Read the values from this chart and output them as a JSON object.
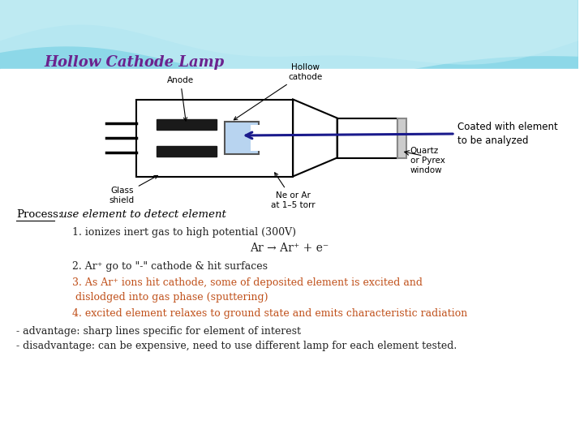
{
  "title": "Hollow Cathode Lamp",
  "title_color": "#6B238E",
  "coated_text": "Coated with element\nto be analyzed",
  "process_label": "Process:",
  "process_desc": " use element to detect element",
  "step1": "1. ionizes inert gas to high potential (300V)",
  "step1b": "Ar → Ar⁺ + e⁻",
  "step2": "2. Ar⁺ go to \"-\" cathode & hit surfaces",
  "step3": "3. As Ar⁺ ions hit cathode, some of deposited element is excited and",
  "step3b": " dislodged into gas phase (sputtering)",
  "step4": "4. excited element relaxes to ground state and emits characteristic radiation",
  "adv": "- advantage: sharp lines specific for element of interest",
  "disadv": "- disadvantage: can be expensive, need to use different lamp for each element tested.",
  "text_color_steps": "#c0501a",
  "text_color_black": "#222222",
  "arrow_color": "#1a1a8c"
}
